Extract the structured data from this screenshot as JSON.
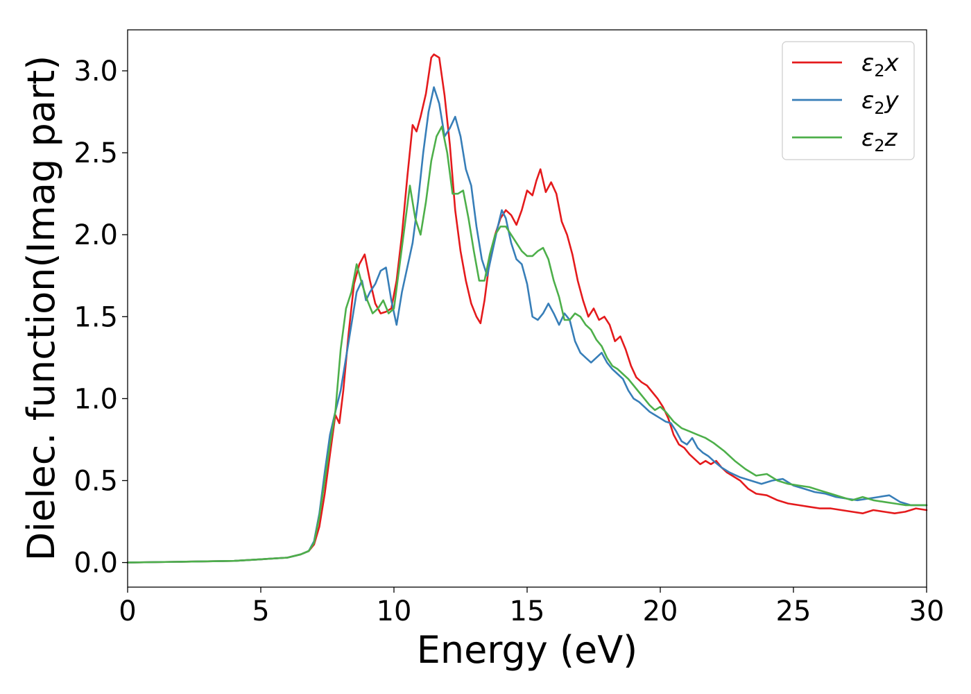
{
  "chart_data": {
    "type": "line",
    "title": "",
    "xlabel": "Energy (eV)",
    "ylabel": "Dielec. function(Imag part)",
    "xlim": [
      0,
      30
    ],
    "ylim": [
      -0.15,
      3.25
    ],
    "xticks": [
      0,
      5,
      10,
      15,
      20,
      25,
      30
    ],
    "xtick_labels": [
      "0",
      "5",
      "10",
      "15",
      "20",
      "25",
      "30"
    ],
    "yticks": [
      0.0,
      0.5,
      1.0,
      1.5,
      2.0,
      2.5,
      3.0
    ],
    "ytick_labels": [
      "0.0",
      "0.5",
      "1.0",
      "1.5",
      "2.0",
      "2.5",
      "3.0"
    ],
    "grid": false,
    "legend": {
      "position": "top-right"
    },
    "series": [
      {
        "name_base": "ε",
        "name_sub": "2",
        "name_suffix": "x",
        "color": "#e41a1c",
        "x": [
          0,
          2,
          4,
          5,
          6,
          6.5,
          6.8,
          7.0,
          7.2,
          7.4,
          7.6,
          7.8,
          7.95,
          8.1,
          8.3,
          8.5,
          8.7,
          8.9,
          9.1,
          9.3,
          9.5,
          9.7,
          9.9,
          10.1,
          10.3,
          10.5,
          10.7,
          10.85,
          11.0,
          11.2,
          11.4,
          11.5,
          11.7,
          11.9,
          12.1,
          12.3,
          12.5,
          12.7,
          12.9,
          13.1,
          13.25,
          13.4,
          13.6,
          13.8,
          14.0,
          14.2,
          14.4,
          14.6,
          14.8,
          15.0,
          15.2,
          15.35,
          15.5,
          15.7,
          15.9,
          16.1,
          16.3,
          16.5,
          16.7,
          16.9,
          17.1,
          17.3,
          17.5,
          17.7,
          17.9,
          18.1,
          18.3,
          18.5,
          18.7,
          18.9,
          19.1,
          19.3,
          19.5,
          19.7,
          19.9,
          20.1,
          20.3,
          20.5,
          20.7,
          20.9,
          21.1,
          21.3,
          21.5,
          21.7,
          21.9,
          22.1,
          22.3,
          22.5,
          22.7,
          23.0,
          23.3,
          23.6,
          24.0,
          24.4,
          24.8,
          25.2,
          25.6,
          26.0,
          26.4,
          26.8,
          27.2,
          27.6,
          28.0,
          28.4,
          28.8,
          29.2,
          29.6,
          30.0
        ],
        "y": [
          0.0,
          0.005,
          0.01,
          0.02,
          0.03,
          0.05,
          0.07,
          0.11,
          0.22,
          0.42,
          0.66,
          0.9,
          0.85,
          1.05,
          1.4,
          1.7,
          1.82,
          1.88,
          1.72,
          1.58,
          1.52,
          1.53,
          1.55,
          1.72,
          2.0,
          2.35,
          2.67,
          2.63,
          2.72,
          2.86,
          3.08,
          3.1,
          3.08,
          2.85,
          2.55,
          2.15,
          1.9,
          1.72,
          1.58,
          1.5,
          1.46,
          1.6,
          1.85,
          2.0,
          2.1,
          2.15,
          2.12,
          2.06,
          2.15,
          2.27,
          2.24,
          2.33,
          2.4,
          2.26,
          2.32,
          2.25,
          2.08,
          2.0,
          1.88,
          1.72,
          1.6,
          1.5,
          1.55,
          1.48,
          1.5,
          1.45,
          1.35,
          1.38,
          1.3,
          1.2,
          1.13,
          1.1,
          1.08,
          1.04,
          1.0,
          0.95,
          0.88,
          0.78,
          0.72,
          0.7,
          0.66,
          0.63,
          0.6,
          0.62,
          0.6,
          0.62,
          0.58,
          0.55,
          0.53,
          0.5,
          0.45,
          0.42,
          0.41,
          0.38,
          0.36,
          0.35,
          0.34,
          0.33,
          0.33,
          0.32,
          0.31,
          0.3,
          0.32,
          0.31,
          0.3,
          0.31,
          0.33,
          0.32
        ]
      },
      {
        "name_base": "ε",
        "name_sub": "2",
        "name_suffix": "y",
        "color": "#377eb8",
        "x": [
          0,
          2,
          4,
          5,
          6,
          6.5,
          6.8,
          7.0,
          7.2,
          7.4,
          7.6,
          7.8,
          8.0,
          8.2,
          8.4,
          8.6,
          8.8,
          8.95,
          9.1,
          9.3,
          9.5,
          9.7,
          9.9,
          10.1,
          10.3,
          10.5,
          10.7,
          10.9,
          11.1,
          11.3,
          11.5,
          11.7,
          11.9,
          12.1,
          12.3,
          12.5,
          12.7,
          12.9,
          13.1,
          13.3,
          13.5,
          13.7,
          13.9,
          14.05,
          14.2,
          14.4,
          14.6,
          14.8,
          15.0,
          15.2,
          15.4,
          15.6,
          15.8,
          16.0,
          16.2,
          16.4,
          16.6,
          16.8,
          17.0,
          17.2,
          17.4,
          17.6,
          17.8,
          18.0,
          18.2,
          18.4,
          18.6,
          18.8,
          19.0,
          19.2,
          19.4,
          19.6,
          19.8,
          20.0,
          20.2,
          20.4,
          20.6,
          20.8,
          21.0,
          21.2,
          21.4,
          21.6,
          21.8,
          22.0,
          22.3,
          22.6,
          23.0,
          23.4,
          23.8,
          24.2,
          24.6,
          25.0,
          25.4,
          25.8,
          26.2,
          26.6,
          27.0,
          27.4,
          27.8,
          28.2,
          28.6,
          29.0,
          29.4,
          30.0
        ],
        "y": [
          0.0,
          0.005,
          0.01,
          0.02,
          0.03,
          0.05,
          0.07,
          0.13,
          0.3,
          0.55,
          0.78,
          0.92,
          1.05,
          1.25,
          1.45,
          1.65,
          1.72,
          1.6,
          1.65,
          1.7,
          1.78,
          1.8,
          1.6,
          1.45,
          1.65,
          1.8,
          1.95,
          2.2,
          2.5,
          2.75,
          2.9,
          2.8,
          2.6,
          2.65,
          2.72,
          2.6,
          2.4,
          2.3,
          2.05,
          1.85,
          1.75,
          1.9,
          2.05,
          2.15,
          2.1,
          1.95,
          1.85,
          1.82,
          1.7,
          1.5,
          1.48,
          1.52,
          1.58,
          1.52,
          1.45,
          1.52,
          1.48,
          1.35,
          1.28,
          1.25,
          1.22,
          1.25,
          1.28,
          1.22,
          1.18,
          1.15,
          1.12,
          1.05,
          1.0,
          0.98,
          0.95,
          0.92,
          0.9,
          0.88,
          0.86,
          0.85,
          0.8,
          0.74,
          0.72,
          0.76,
          0.7,
          0.67,
          0.65,
          0.62,
          0.58,
          0.55,
          0.52,
          0.5,
          0.48,
          0.5,
          0.51,
          0.47,
          0.45,
          0.43,
          0.42,
          0.4,
          0.39,
          0.38,
          0.39,
          0.4,
          0.41,
          0.37,
          0.35,
          0.35
        ]
      },
      {
        "name_base": "ε",
        "name_sub": "2",
        "name_suffix": "z",
        "color": "#4daf4a",
        "x": [
          0,
          2,
          4,
          5,
          6,
          6.5,
          6.8,
          7.0,
          7.2,
          7.4,
          7.6,
          7.8,
          8.0,
          8.2,
          8.4,
          8.6,
          8.8,
          9.0,
          9.2,
          9.4,
          9.6,
          9.8,
          10.0,
          10.2,
          10.4,
          10.6,
          10.8,
          11.0,
          11.2,
          11.4,
          11.6,
          11.8,
          12.0,
          12.2,
          12.4,
          12.6,
          12.8,
          13.0,
          13.2,
          13.4,
          13.6,
          13.8,
          14.0,
          14.2,
          14.4,
          14.6,
          14.8,
          15.0,
          15.2,
          15.4,
          15.6,
          15.8,
          16.0,
          16.2,
          16.4,
          16.6,
          16.8,
          17.0,
          17.2,
          17.4,
          17.6,
          17.8,
          18.0,
          18.2,
          18.4,
          18.6,
          18.8,
          19.0,
          19.2,
          19.4,
          19.6,
          19.8,
          20.0,
          20.2,
          20.5,
          20.8,
          21.1,
          21.4,
          21.7,
          22.0,
          22.4,
          22.8,
          23.2,
          23.6,
          24.0,
          24.4,
          24.8,
          25.2,
          25.6,
          26.0,
          26.4,
          26.8,
          27.2,
          27.6,
          28.0,
          28.4,
          28.8,
          29.2,
          29.6,
          30.0
        ],
        "y": [
          0.0,
          0.005,
          0.01,
          0.02,
          0.03,
          0.05,
          0.07,
          0.12,
          0.28,
          0.5,
          0.72,
          0.92,
          1.3,
          1.55,
          1.65,
          1.82,
          1.7,
          1.6,
          1.52,
          1.55,
          1.6,
          1.52,
          1.55,
          1.8,
          2.05,
          2.3,
          2.1,
          2.0,
          2.2,
          2.45,
          2.6,
          2.66,
          2.5,
          2.25,
          2.25,
          2.27,
          2.1,
          1.9,
          1.72,
          1.72,
          1.88,
          2.0,
          2.05,
          2.05,
          2.0,
          1.95,
          1.9,
          1.87,
          1.87,
          1.9,
          1.92,
          1.85,
          1.72,
          1.62,
          1.48,
          1.48,
          1.52,
          1.5,
          1.45,
          1.42,
          1.36,
          1.32,
          1.25,
          1.2,
          1.18,
          1.15,
          1.12,
          1.08,
          1.04,
          1.0,
          0.96,
          0.93,
          0.95,
          0.92,
          0.86,
          0.82,
          0.8,
          0.78,
          0.76,
          0.73,
          0.68,
          0.62,
          0.57,
          0.53,
          0.54,
          0.5,
          0.48,
          0.47,
          0.46,
          0.44,
          0.42,
          0.4,
          0.38,
          0.4,
          0.38,
          0.37,
          0.36,
          0.35,
          0.35,
          0.35
        ]
      }
    ]
  }
}
